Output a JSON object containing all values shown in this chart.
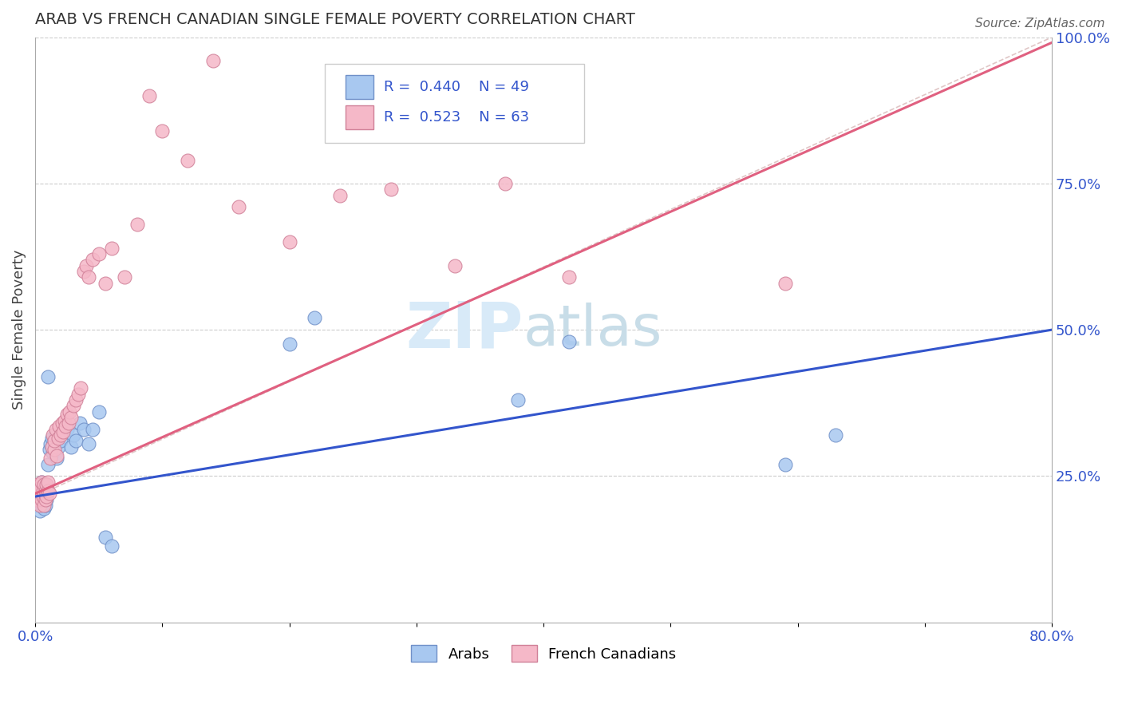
{
  "title": "ARAB VS FRENCH CANADIAN SINGLE FEMALE POVERTY CORRELATION CHART",
  "source_text": "Source: ZipAtlas.com",
  "ylabel": "Single Female Poverty",
  "xlim": [
    0.0,
    0.8
  ],
  "ylim": [
    0.0,
    1.0
  ],
  "arab_color": "#a8c8f0",
  "arab_edge_color": "#7090c8",
  "french_color": "#f5b8c8",
  "french_edge_color": "#d08098",
  "arab_line_color": "#3355cc",
  "french_line_color": "#e06080",
  "ref_line_color": "#d8b8b8",
  "grid_color": "#cccccc",
  "arab_R": 0.44,
  "arab_N": 49,
  "french_R": 0.523,
  "french_N": 63,
  "legend_R_color": "#3355cc",
  "watermark_color": "#d8eaf8",
  "arab_x": [
    0.001,
    0.002,
    0.002,
    0.003,
    0.003,
    0.003,
    0.004,
    0.004,
    0.005,
    0.005,
    0.005,
    0.006,
    0.006,
    0.007,
    0.007,
    0.007,
    0.008,
    0.008,
    0.009,
    0.009,
    0.01,
    0.01,
    0.011,
    0.012,
    0.013,
    0.014,
    0.015,
    0.016,
    0.017,
    0.018,
    0.02,
    0.022,
    0.025,
    0.028,
    0.03,
    0.032,
    0.035,
    0.038,
    0.042,
    0.045,
    0.05,
    0.055,
    0.06,
    0.2,
    0.22,
    0.38,
    0.42,
    0.59,
    0.63
  ],
  "arab_y": [
    0.215,
    0.2,
    0.23,
    0.21,
    0.22,
    0.235,
    0.19,
    0.225,
    0.215,
    0.2,
    0.24,
    0.205,
    0.22,
    0.195,
    0.215,
    0.23,
    0.2,
    0.225,
    0.21,
    0.235,
    0.42,
    0.27,
    0.295,
    0.305,
    0.315,
    0.29,
    0.31,
    0.32,
    0.28,
    0.3,
    0.31,
    0.325,
    0.33,
    0.3,
    0.32,
    0.31,
    0.34,
    0.33,
    0.305,
    0.33,
    0.36,
    0.145,
    0.13,
    0.475,
    0.52,
    0.38,
    0.48,
    0.27,
    0.32
  ],
  "french_x": [
    0.001,
    0.002,
    0.002,
    0.003,
    0.003,
    0.004,
    0.004,
    0.005,
    0.005,
    0.006,
    0.006,
    0.007,
    0.007,
    0.008,
    0.008,
    0.009,
    0.009,
    0.01,
    0.01,
    0.011,
    0.012,
    0.013,
    0.014,
    0.015,
    0.015,
    0.016,
    0.017,
    0.018,
    0.019,
    0.02,
    0.021,
    0.022,
    0.023,
    0.024,
    0.025,
    0.026,
    0.027,
    0.028,
    0.03,
    0.032,
    0.034,
    0.036,
    0.038,
    0.04,
    0.042,
    0.045,
    0.05,
    0.055,
    0.06,
    0.07,
    0.08,
    0.09,
    0.1,
    0.12,
    0.14,
    0.16,
    0.2,
    0.24,
    0.28,
    0.33,
    0.37,
    0.42,
    0.59
  ],
  "french_y": [
    0.22,
    0.21,
    0.235,
    0.215,
    0.225,
    0.2,
    0.23,
    0.21,
    0.24,
    0.215,
    0.225,
    0.2,
    0.235,
    0.21,
    0.225,
    0.215,
    0.235,
    0.225,
    0.24,
    0.22,
    0.28,
    0.3,
    0.32,
    0.295,
    0.31,
    0.33,
    0.285,
    0.315,
    0.335,
    0.32,
    0.34,
    0.325,
    0.345,
    0.335,
    0.355,
    0.34,
    0.36,
    0.35,
    0.37,
    0.38,
    0.39,
    0.4,
    0.6,
    0.61,
    0.59,
    0.62,
    0.63,
    0.58,
    0.64,
    0.59,
    0.68,
    0.9,
    0.84,
    0.79,
    0.96,
    0.71,
    0.65,
    0.73,
    0.74,
    0.61,
    0.75,
    0.59,
    0.58
  ]
}
